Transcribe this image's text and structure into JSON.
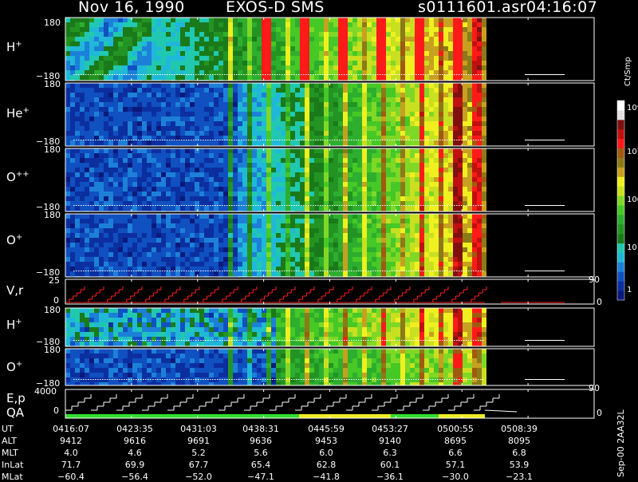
{
  "header": {
    "date": "Nov 16, 1990",
    "instrument": "EXOS-D SMS",
    "file": "s0111601.asr",
    "time": "04:16:07"
  },
  "colors": {
    "background": "#000000",
    "axis": "#ffffff",
    "line_red": "#ff2020",
    "qa_green": "#33dd33",
    "qa_yellow": "#eeee22"
  },
  "colorbar": {
    "unit": "Ct/Smp",
    "ticks": [
      "1",
      "10",
      "100",
      "10³",
      "10⁴"
    ],
    "colors": [
      "#0a1a7a",
      "#0c2fa0",
      "#1050c0",
      "#1d80d8",
      "#20b8d8",
      "#20c8b0",
      "#1a7a1a",
      "#239423",
      "#2eae2e",
      "#46c826",
      "#80d826",
      "#c8e020",
      "#f0f020",
      "#c8a020",
      "#8c7a18",
      "#a05a10",
      "#ff1a1a",
      "#c01010",
      "#801010",
      "#e0e0e0",
      "#ffffff"
    ]
  },
  "panels": [
    {
      "species": "H",
      "charge": "+",
      "ymax": "180",
      "ymin": "−180"
    },
    {
      "species": "He",
      "charge": "+",
      "ymax": "180",
      "ymin": "−180"
    },
    {
      "species": "O",
      "charge": "++",
      "ymax": "180",
      "ymin": "−180"
    },
    {
      "species": "O",
      "charge": "+",
      "ymax": "180",
      "ymin": "−180"
    },
    {
      "species": "V,r",
      "charge": "",
      "ymax": "25",
      "ymin": "0",
      "right_top": "90",
      "right_bottom": "0"
    },
    {
      "species": "H",
      "charge": "+",
      "ymax": "180",
      "ymin": "−180"
    },
    {
      "species": "O",
      "charge": "+",
      "ymax": "180",
      "ymin": "−180"
    },
    {
      "species": "E,p",
      "species2": "QA",
      "charge": "",
      "ymax": "4000",
      "ymin": "0",
      "right_top": "90",
      "right_bottom": "0"
    }
  ],
  "footer": {
    "row_labels": [
      "UT",
      "ALT",
      "MLT",
      "InLat",
      "MLat"
    ],
    "columns": [
      {
        "UT": "0416:07",
        "ALT": "9412",
        "MLT": "4.0",
        "InLat": "71.7",
        "MLat": "−60.4"
      },
      {
        "UT": "0423:35",
        "ALT": "9616",
        "MLT": "4.6",
        "InLat": "69.9",
        "MLat": "−56.4"
      },
      {
        "UT": "0431:03",
        "ALT": "9691",
        "MLT": "5.2",
        "InLat": "67.7",
        "MLat": "−52.0"
      },
      {
        "UT": "0438:31",
        "ALT": "9636",
        "MLT": "5.6",
        "InLat": "65.4",
        "MLat": "−47.1"
      },
      {
        "UT": "0445:59",
        "ALT": "9453",
        "MLT": "6.0",
        "InLat": "62.8",
        "MLat": "−41.8"
      },
      {
        "UT": "0453:27",
        "ALT": "9140",
        "MLT": "6.3",
        "InLat": "60.1",
        "MLat": "−36.1"
      },
      {
        "UT": "0500:55",
        "ALT": "8695",
        "MLT": "6.6",
        "InLat": "57.1",
        "MLat": "−30.0"
      },
      {
        "UT": "0508:39",
        "ALT": "8095",
        "MLT": "6.8",
        "InLat": "53.9",
        "MLat": "−23.1"
      }
    ],
    "stamp": "Sep-00 2AA32L"
  },
  "chart_data": {
    "type": "heatmap",
    "title": "Nov 16, 1990   EXOS-D SMS",
    "xlabel": "UT",
    "x_ticks": [
      "0416:07",
      "0423:35",
      "0431:03",
      "0438:31",
      "0445:59",
      "0453:27",
      "0500:55",
      "0508:39"
    ],
    "ylim_angle": [
      -180,
      180
    ],
    "colorbar_unit": "Ct/Smp",
    "colorbar_range": [
      1,
      10000
    ],
    "scale": "log",
    "species_panels": [
      "H+",
      "He+",
      "O++",
      "O+",
      "H+",
      "O+"
    ],
    "line_panels": [
      {
        "name": "V,r",
        "ylim": [
          0,
          25
        ],
        "right_axis": [
          0,
          90
        ]
      },
      {
        "name": "E,p",
        "ylim": [
          0,
          4000
        ],
        "right_axis": [
          0,
          90
        ]
      }
    ],
    "qa_bar": [
      {
        "from": "0416:07",
        "to": "0445:59",
        "color": "green"
      },
      {
        "from": "0445:59",
        "to": "0453:27",
        "color": "yellow"
      },
      {
        "from": "0453:27",
        "to": "0500:55",
        "color": "green"
      },
      {
        "from": "0500:55",
        "to": "0508:39",
        "color": "yellow"
      }
    ]
  }
}
